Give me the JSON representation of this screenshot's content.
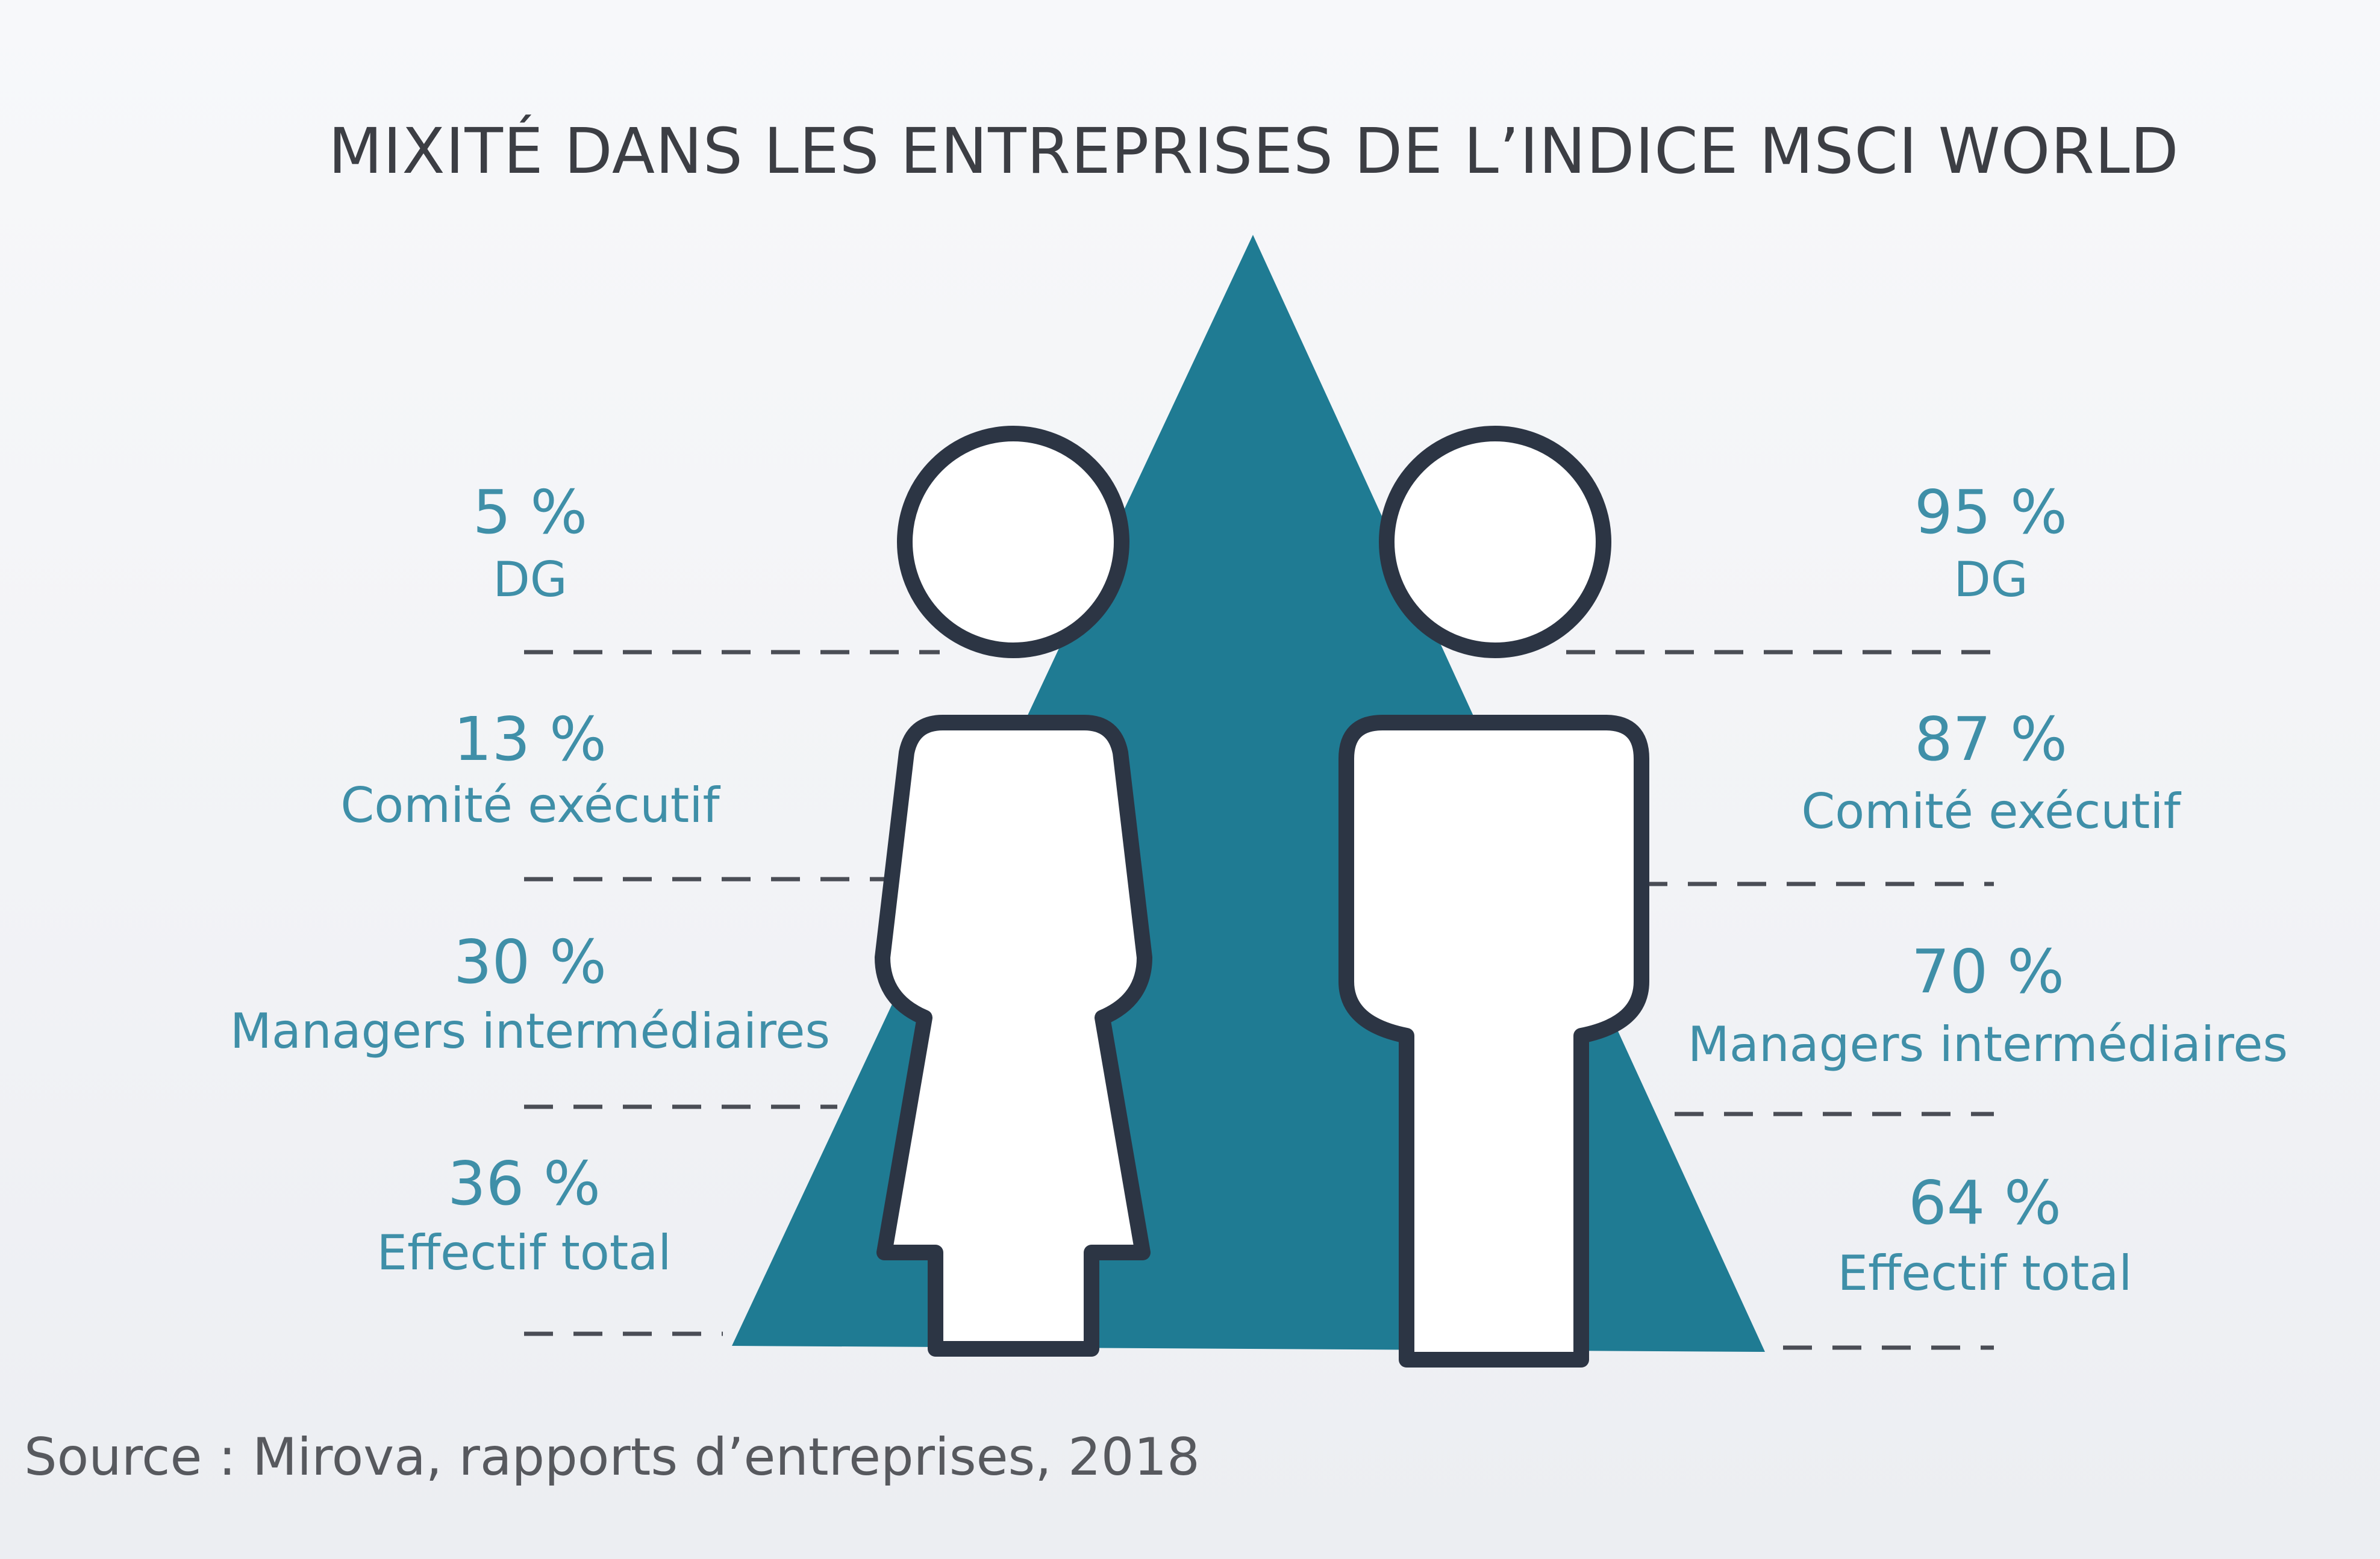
{
  "title": "MIXITÉ DANS LES ENTREPRISES DE L’INDICE MSCI WORLD",
  "source": "Source : Mirova, rapports d’entreprises, 2018",
  "colors": {
    "triangle": "#1f7b93",
    "text_accent": "#3f8fa8",
    "figure_stroke": "#2c3544",
    "title": "#3c3e44"
  },
  "icons": [
    "woman-figure-icon",
    "man-figure-icon",
    "pyramid-triangle"
  ],
  "chart_data": {
    "type": "table",
    "title": "MIXITÉ DANS LES ENTREPRISES DE L’INDICE MSCI WORLD",
    "categories": [
      "DG",
      "Comité exécutif",
      "Managers intermédiaires",
      "Effectif total"
    ],
    "unit": "%",
    "series": [
      {
        "values": [
          5,
          13,
          30,
          36
        ],
        "labels": [
          "5 %",
          "13 %",
          "30 %",
          "36 %"
        ]
      },
      {
        "values": [
          95,
          87,
          70,
          64
        ],
        "labels": [
          "95 %",
          "87 %",
          "70 %",
          "64 %"
        ]
      }
    ]
  }
}
